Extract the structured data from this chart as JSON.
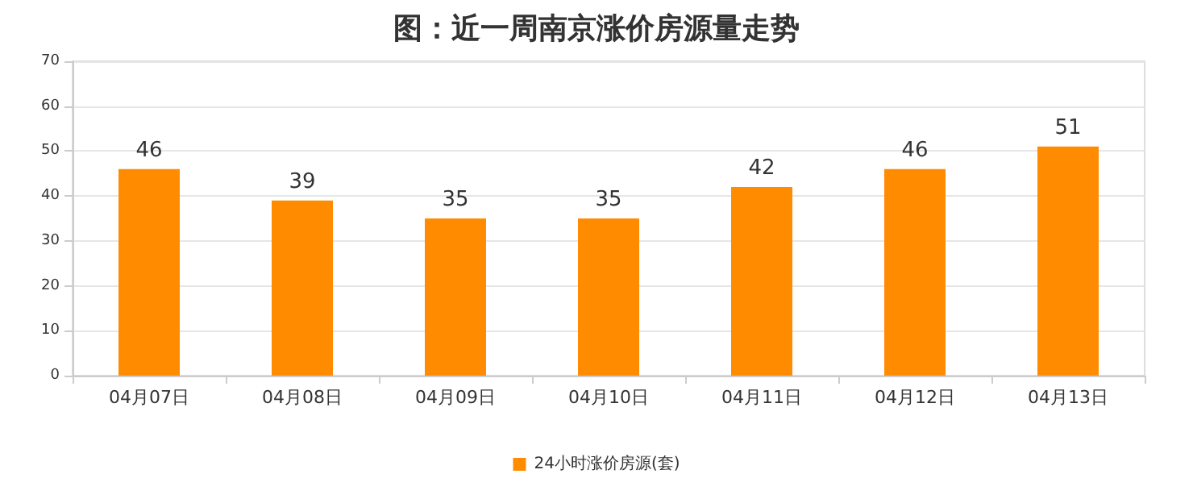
{
  "chart_data": {
    "type": "bar",
    "title": "图：近一周南京涨价房源量走势",
    "categories": [
      "04月07日",
      "04月08日",
      "04月09日",
      "04月10日",
      "04月11日",
      "04月12日",
      "04月13日"
    ],
    "series": [
      {
        "name": "24小时涨价房源(套)",
        "color": "#ff8c00",
        "values": [
          46,
          39,
          35,
          35,
          42,
          46,
          51
        ]
      }
    ],
    "ylim": [
      0,
      70
    ],
    "yticks": [
      0,
      10,
      20,
      30,
      40,
      50,
      60,
      70
    ],
    "grid": "y",
    "legend": "bottom",
    "data_labels": true
  }
}
